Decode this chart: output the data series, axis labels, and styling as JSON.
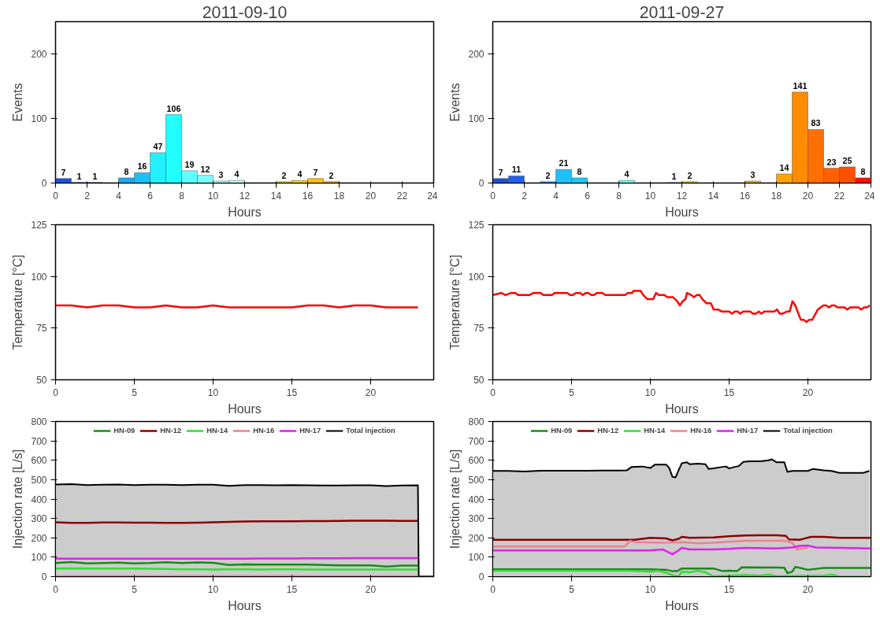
{
  "chart_data": [
    {
      "type": "histogram",
      "title": "2011-09-10",
      "xlabel": "Hours",
      "ylabel": "Events",
      "bins": [
        0,
        1,
        2,
        3,
        4,
        5,
        6,
        7,
        8,
        9,
        10,
        11,
        12,
        13,
        14,
        15,
        16,
        17,
        18,
        19,
        20,
        21,
        22,
        23,
        24
      ],
      "values": [
        7,
        1,
        1,
        0,
        8,
        16,
        47,
        106,
        19,
        12,
        3,
        4,
        0,
        0,
        2,
        4,
        7,
        2,
        0,
        0,
        0,
        0,
        0,
        0
      ],
      "colors": [
        "#1f4fe0",
        "#2060f0",
        "#2a7af5",
        "#1e90ff",
        "#20a8f0",
        "#1cc0f8",
        "#22f0ff",
        "#22ffff",
        "#60ffff",
        "#80ffff",
        "#a0ffff",
        "#b8ffff",
        "#d8f0c0",
        "#f0e080",
        "#f0d000",
        "#ffd000",
        "#ffc000",
        "#ffa800",
        "#ffa500",
        "#ff8c00",
        "#ff7000",
        "#ff6000",
        "#ff5000",
        "#ff1000"
      ],
      "value_labels": [
        "7",
        "1",
        "1",
        null,
        "8",
        "16",
        "47",
        "106",
        "19",
        "12",
        "3",
        "4",
        null,
        null,
        "2",
        "4",
        "7",
        "2",
        null,
        null,
        null,
        null,
        null,
        null
      ],
      "xlim": [
        0,
        24
      ],
      "xticks": [
        0,
        2,
        4,
        6,
        8,
        10,
        12,
        14,
        16,
        18,
        20,
        22,
        24
      ],
      "ylim": [
        0,
        250
      ],
      "yticks": [
        0,
        100,
        200
      ],
      "grid": false
    },
    {
      "type": "histogram",
      "title": "2011-09-27",
      "xlabel": "Hours",
      "ylabel": "Events",
      "bins": [
        0,
        1,
        2,
        3,
        4,
        5,
        6,
        7,
        8,
        9,
        10,
        11,
        12,
        13,
        14,
        15,
        16,
        17,
        18,
        19,
        20,
        21,
        22,
        23,
        24
      ],
      "values": [
        7,
        11,
        0,
        2,
        21,
        8,
        0,
        0,
        4,
        0,
        0,
        1,
        2,
        0,
        0,
        0,
        3,
        0,
        14,
        141,
        83,
        23,
        25,
        8
      ],
      "colors": [
        "#1f4fe0",
        "#2060f0",
        "#2a7af5",
        "#1e90ff",
        "#20c0ff",
        "#1cc8f8",
        "#22f0ff",
        "#22ffff",
        "#60ffff",
        "#80ffff",
        "#a0ffff",
        "#b8ffff",
        "#e0c000",
        "#f0e080",
        "#f0d000",
        "#ffd000",
        "#f0b000",
        "#ffa800",
        "#ffa500",
        "#ff8c00",
        "#ff7000",
        "#ff6000",
        "#ff5000",
        "#ff1000"
      ],
      "value_labels": [
        "7",
        "11",
        null,
        "2",
        "21",
        "8",
        null,
        null,
        "4",
        null,
        null,
        "1",
        "2",
        null,
        null,
        null,
        "3",
        null,
        "14",
        "141",
        "83",
        "23",
        "25",
        "8"
      ],
      "xlim": [
        0,
        24
      ],
      "xticks": [
        0,
        2,
        4,
        6,
        8,
        10,
        12,
        14,
        16,
        18,
        20,
        22,
        24
      ],
      "ylim": [
        0,
        250
      ],
      "yticks": [
        0,
        100,
        200
      ],
      "grid": false
    },
    {
      "type": "line",
      "xlabel": "Hours",
      "ylabel": "Temperature [°C]",
      "x": [
        0,
        1,
        2,
        3,
        4,
        5,
        6,
        7,
        8,
        9,
        10,
        11,
        12,
        13,
        14,
        15,
        16,
        17,
        18,
        19,
        20,
        21,
        22,
        23
      ],
      "series": [
        {
          "color": "#ff0000",
          "values": [
            86,
            86,
            85,
            86,
            86,
            85,
            85,
            86,
            85,
            85,
            86,
            85,
            85,
            85,
            85,
            85,
            86,
            86,
            85,
            86,
            86,
            85,
            85,
            85
          ]
        }
      ],
      "xlim": [
        0,
        24
      ],
      "xticks": [
        0,
        5,
        10,
        15,
        20
      ],
      "ylim": [
        50,
        125
      ],
      "yticks": [
        50,
        75,
        100,
        125
      ],
      "grid": false
    },
    {
      "type": "line",
      "xlabel": "Hours",
      "ylabel": "Temperature [°C]",
      "series": [
        {
          "color": "#ff0000",
          "x": [
            0,
            0.54,
            0.8,
            1.16,
            1.43,
            1.61,
            2.32,
            2.59,
            3.04,
            3.21,
            3.75,
            3.93,
            4.73,
            4.91,
            5.09,
            5.27,
            5.54,
            5.71,
            5.89,
            6.07,
            6.25,
            6.43,
            6.61,
            6.96,
            7.14,
            8.39,
            8.57,
            8.84,
            8.93,
            9.38,
            9.55,
            9.82,
            10.18,
            10.36,
            10.54,
            10.89,
            11.07,
            11.43,
            11.7,
            11.88,
            12.05,
            12.23,
            12.32,
            12.59,
            12.77,
            12.95,
            13.13,
            13.3,
            13.57,
            13.84,
            14.02,
            14.29,
            14.55,
            15.0,
            15.18,
            15.36,
            15.54,
            15.71,
            15.89,
            16.34,
            16.52,
            16.7,
            16.88,
            17.05,
            17.23,
            17.86,
            18.04,
            18.21,
            18.39,
            18.66,
            18.84,
            19.02,
            19.2,
            19.55,
            19.73,
            19.91,
            20.09,
            20.27,
            20.63,
            20.98,
            21.16,
            21.34,
            21.52,
            21.7,
            21.88,
            22.32,
            22.5,
            22.68,
            23.21,
            23.39,
            23.57,
            23.75,
            23.93
          ],
          "values": [
            91,
            92,
            91,
            92,
            92,
            91,
            91,
            92,
            92,
            91,
            91,
            92,
            92,
            91,
            91,
            92,
            92,
            91,
            92,
            92,
            91,
            91,
            92,
            92,
            91,
            91,
            92,
            92,
            93,
            93,
            91,
            89,
            89,
            92,
            91,
            91,
            90,
            90,
            88,
            86,
            88,
            89,
            92,
            91,
            90,
            91,
            91,
            89,
            87,
            87,
            84,
            84,
            83,
            83,
            82,
            83,
            83,
            82,
            83,
            83,
            82,
            82,
            83,
            82,
            83,
            83,
            84,
            82,
            82,
            83,
            83,
            88,
            86,
            79,
            79,
            78,
            79,
            79,
            84,
            86,
            86,
            85,
            86,
            86,
            85,
            85,
            84,
            85,
            85,
            84,
            85,
            85,
            86
          ]
        }
      ],
      "xlim": [
        0,
        24
      ],
      "xticks": [
        0,
        5,
        10,
        15,
        20
      ],
      "ylim": [
        50,
        125
      ],
      "yticks": [
        50,
        75,
        100,
        125
      ],
      "grid": false
    },
    {
      "type": "line",
      "xlabel": "Hours",
      "ylabel": "Injection rate [L/s]",
      "x": [
        0,
        1,
        2,
        3,
        4,
        5,
        6,
        7,
        8,
        9,
        10,
        11,
        12,
        13,
        14,
        15,
        16,
        17,
        18,
        19,
        20,
        21,
        22,
        23
      ],
      "series": [
        {
          "name": "HN-09",
          "color": "#1a8a1a",
          "values": [
            70,
            75,
            68,
            70,
            72,
            68,
            70,
            74,
            70,
            73,
            71,
            60,
            63,
            62,
            62,
            62,
            62,
            60,
            58,
            58,
            58,
            52,
            57,
            57
          ]
        },
        {
          "name": "HN-12",
          "color": "#8b0000",
          "values": [
            280,
            277,
            277,
            279,
            279,
            278,
            278,
            277,
            277,
            278,
            280,
            282,
            284,
            285,
            285,
            285,
            286,
            286,
            287,
            288,
            288,
            288,
            287,
            287
          ]
        },
        {
          "name": "HN-14",
          "color": "#33dd33",
          "values": [
            42,
            43,
            42,
            42,
            42,
            42,
            41,
            40,
            38,
            38,
            37,
            38,
            38,
            37,
            38,
            38,
            37,
            37,
            37,
            37,
            37,
            37,
            37,
            37
          ]
        },
        {
          "name": "HN-16",
          "color": "#f08090",
          "values": [
            2,
            2,
            2,
            2,
            2,
            2,
            2,
            2,
            2,
            2,
            2,
            2,
            2,
            2,
            2,
            2,
            2,
            2,
            2,
            2,
            2,
            2,
            2,
            2
          ]
        },
        {
          "name": "HN-17",
          "color": "#e020f0",
          "values": [
            92,
            92,
            92,
            92,
            92,
            92,
            92,
            92,
            92,
            92,
            92,
            92,
            92,
            93,
            93,
            93,
            94,
            94,
            94,
            95,
            95,
            95,
            95,
            95
          ]
        },
        {
          "name": "Total injection",
          "type": "area",
          "color": "#000000",
          "x": [
            0,
            1,
            2,
            3,
            4,
            5,
            6,
            7,
            8,
            9,
            10,
            11,
            12,
            13,
            14,
            15,
            16,
            17,
            18,
            19,
            20,
            21,
            22,
            23,
            23.05,
            24
          ],
          "values": [
            475,
            477,
            472,
            474,
            475,
            472,
            474,
            474,
            472,
            474,
            474,
            468,
            472,
            472,
            471,
            472,
            471,
            470,
            470,
            471,
            471,
            467,
            470,
            471,
            0,
            0
          ]
        }
      ],
      "xlim": [
        0,
        24
      ],
      "xticks": [
        0,
        5,
        10,
        15,
        20
      ],
      "ylim": [
        0,
        800
      ],
      "yticks": [
        0,
        100,
        200,
        300,
        400,
        500,
        600,
        700,
        800
      ],
      "grid": false,
      "legend": "top"
    },
    {
      "type": "line",
      "xlabel": "Hours",
      "ylabel": "Injection rate [L/s]",
      "series": [
        {
          "name": "HN-09",
          "color": "#1a8a1a",
          "x": [
            0,
            9,
            10,
            11,
            11.4,
            11.7,
            12,
            14,
            14.3,
            14.6,
            15,
            15.5,
            15.8,
            18,
            18.5,
            18.7,
            19,
            19.2,
            19.5,
            20,
            21,
            22,
            24
          ],
          "values": [
            38,
            38,
            38,
            35,
            28,
            28,
            42,
            42,
            35,
            28,
            30,
            28,
            48,
            47,
            46,
            18,
            25,
            50,
            45,
            35,
            45,
            45,
            45
          ]
        },
        {
          "name": "HN-12",
          "color": "#8b0000",
          "x": [
            0,
            9,
            9.5,
            10,
            11,
            11.4,
            11.8,
            12,
            12.5,
            14,
            15,
            16,
            17,
            18,
            18.6,
            18.8,
            19.5,
            20.2,
            21,
            22,
            24
          ],
          "values": [
            190,
            190,
            195,
            200,
            197,
            187,
            195,
            205,
            200,
            202,
            208,
            212,
            213,
            213,
            210,
            192,
            190,
            205,
            205,
            200,
            200
          ]
        },
        {
          "name": "HN-14",
          "color": "#33dd33",
          "x": [
            0,
            8.5,
            9.5,
            10,
            10.5,
            11,
            11.5,
            11.8,
            12,
            12.5,
            13,
            13.5,
            14,
            15,
            16,
            17,
            17.5,
            18,
            21,
            21.5,
            22,
            24
          ],
          "values": [
            30,
            30,
            28,
            25,
            30,
            20,
            5,
            2,
            25,
            22,
            30,
            22,
            2,
            5,
            8,
            5,
            10,
            2,
            5,
            10,
            0,
            0
          ]
        },
        {
          "name": "HN-16",
          "color": "#f08090",
          "x": [
            0,
            8.4,
            8.7,
            9,
            11,
            12,
            13,
            14,
            15,
            16,
            18.5,
            19,
            19.3,
            19.7,
            20
          ],
          "values": [
            155,
            155,
            185,
            178,
            175,
            178,
            172,
            175,
            180,
            185,
            185,
            175,
            140,
            145,
            150
          ]
        },
        {
          "name": "HN-17",
          "color": "#e020f0",
          "x": [
            0,
            8,
            10,
            10.8,
            11.4,
            11.7,
            12,
            12.5,
            14,
            15,
            16,
            18,
            19,
            19.5,
            20,
            20.5,
            22,
            24
          ],
          "values": [
            135,
            135,
            135,
            140,
            115,
            130,
            148,
            140,
            140,
            143,
            148,
            145,
            150,
            158,
            160,
            150,
            148,
            145
          ]
        },
        {
          "name": "Total injection",
          "type": "area",
          "color": "#000000",
          "x": [
            0,
            1,
            2,
            3,
            4,
            5,
            6,
            7,
            8,
            8.5,
            8.8,
            9.5,
            10,
            10.3,
            11,
            11.2,
            11.4,
            11.6,
            11.8,
            12,
            12.3,
            12.5,
            13,
            13.5,
            13.7,
            14,
            14.5,
            14.8,
            15,
            15.3,
            15.6,
            15.9,
            16.3,
            17,
            17.5,
            17.7,
            18,
            18.5,
            18.7,
            19,
            19.5,
            20,
            20.3,
            21,
            21.5,
            22,
            23,
            23.5,
            23.9
          ],
          "values": [
            545,
            545,
            542,
            546,
            546,
            546,
            546,
            547,
            547,
            548,
            565,
            568,
            560,
            578,
            578,
            560,
            515,
            512,
            550,
            585,
            590,
            580,
            583,
            580,
            555,
            558,
            565,
            568,
            558,
            565,
            570,
            592,
            595,
            595,
            600,
            605,
            590,
            590,
            540,
            545,
            545,
            545,
            555,
            548,
            545,
            535,
            535,
            535,
            545
          ]
        }
      ],
      "xlim": [
        0,
        24
      ],
      "xticks": [
        0,
        5,
        10,
        15,
        20
      ],
      "ylim": [
        0,
        800
      ],
      "yticks": [
        0,
        100,
        200,
        300,
        400,
        500,
        600,
        700,
        800
      ],
      "grid": false,
      "legend": "top"
    }
  ]
}
